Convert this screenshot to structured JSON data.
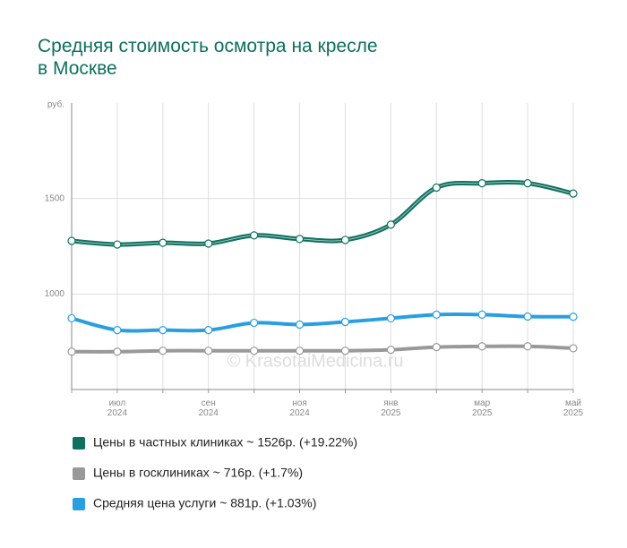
{
  "chart_data": {
    "type": "line",
    "title": "Средняя стоимость осмотра на кресле в Москве",
    "y_label": "руб.",
    "watermark": "© KrasotaiMedicina.ru",
    "categories": [
      null,
      "июл 2024",
      null,
      "сен 2024",
      null,
      "ноя 2024",
      null,
      "янв 2025",
      null,
      "мар 2025",
      null,
      "май 2025"
    ],
    "series": [
      {
        "name": "Цены в частных клиниках ~ 1526р. (+19.22%)",
        "color": "#0e7060",
        "values": [
          1278,
          1259,
          1268,
          1264,
          1307,
          1288,
          1283,
          1363,
          1557,
          1580,
          1580,
          1526
        ]
      },
      {
        "name": "Цены в госклиниках ~ 716р. (+1.7%)",
        "color": "#999999",
        "values": [
          698,
          698,
          703,
          703,
          703,
          703,
          703,
          708,
          722,
          726,
          726,
          716
        ]
      },
      {
        "name": "Средняя цена услуги ~ 881р. (+1.03%)",
        "color": "#2a9fe0",
        "values": [
          873,
          811,
          811,
          811,
          849,
          840,
          854,
          873,
          892,
          892,
          882,
          881
        ]
      }
    ],
    "ylim": [
      500,
      2000
    ],
    "yticks": [
      1000,
      1500
    ],
    "grid": true
  }
}
